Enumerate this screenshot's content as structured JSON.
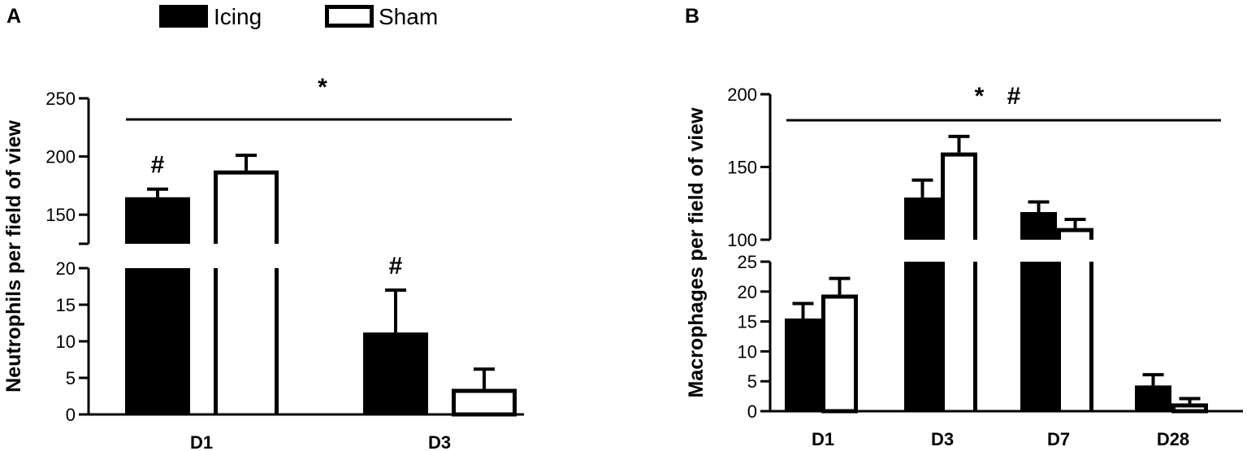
{
  "legend": [
    {
      "name": "Icing",
      "color": "#000000",
      "fill": "solid"
    },
    {
      "name": "Sham",
      "color": "#ffffff",
      "fill": "hollow"
    }
  ],
  "chart_data": [
    {
      "panel": "A",
      "type": "bar",
      "ylabel": "Neutrophils per field of view",
      "categories": [
        "D1",
        "D3"
      ],
      "series": [
        {
          "name": "Icing",
          "values": [
            165,
            11.2
          ],
          "errors": [
            7,
            5.8
          ]
        },
        {
          "name": "Sham",
          "values": [
            188,
            3.5
          ],
          "errors": [
            13,
            2.7
          ]
        }
      ],
      "y_broken": true,
      "y_segments": [
        {
          "range": [
            0,
            20
          ],
          "ticks": [
            0,
            5,
            10,
            15,
            20
          ]
        },
        {
          "range": [
            125,
            250
          ],
          "ticks": [
            150,
            200,
            250
          ]
        }
      ],
      "annotations": [
        {
          "text": "*",
          "span": "all"
        },
        {
          "text": "#",
          "category": "D1",
          "series": "Icing"
        },
        {
          "text": "#",
          "category": "D3",
          "series": "Icing"
        }
      ]
    },
    {
      "panel": "B",
      "type": "bar",
      "ylabel": "Macrophages per field of view",
      "categories": [
        "D1",
        "D3",
        "D7",
        "D28"
      ],
      "series": [
        {
          "name": "Icing",
          "values": [
            15.5,
            129,
            119,
            4.3
          ],
          "errors": [
            2.5,
            12,
            7,
            1.8
          ]
        },
        {
          "name": "Sham",
          "values": [
            19.5,
            160,
            108,
            1.3
          ],
          "errors": [
            2.7,
            11,
            6,
            0.8
          ]
        }
      ],
      "y_broken": true,
      "y_segments": [
        {
          "range": [
            0,
            25
          ],
          "ticks": [
            0,
            5,
            10,
            15,
            20,
            25
          ]
        },
        {
          "range": [
            100,
            200
          ],
          "ticks": [
            100,
            150,
            200
          ]
        }
      ],
      "annotations": [
        {
          "text": "* #",
          "span": "all"
        }
      ]
    }
  ]
}
